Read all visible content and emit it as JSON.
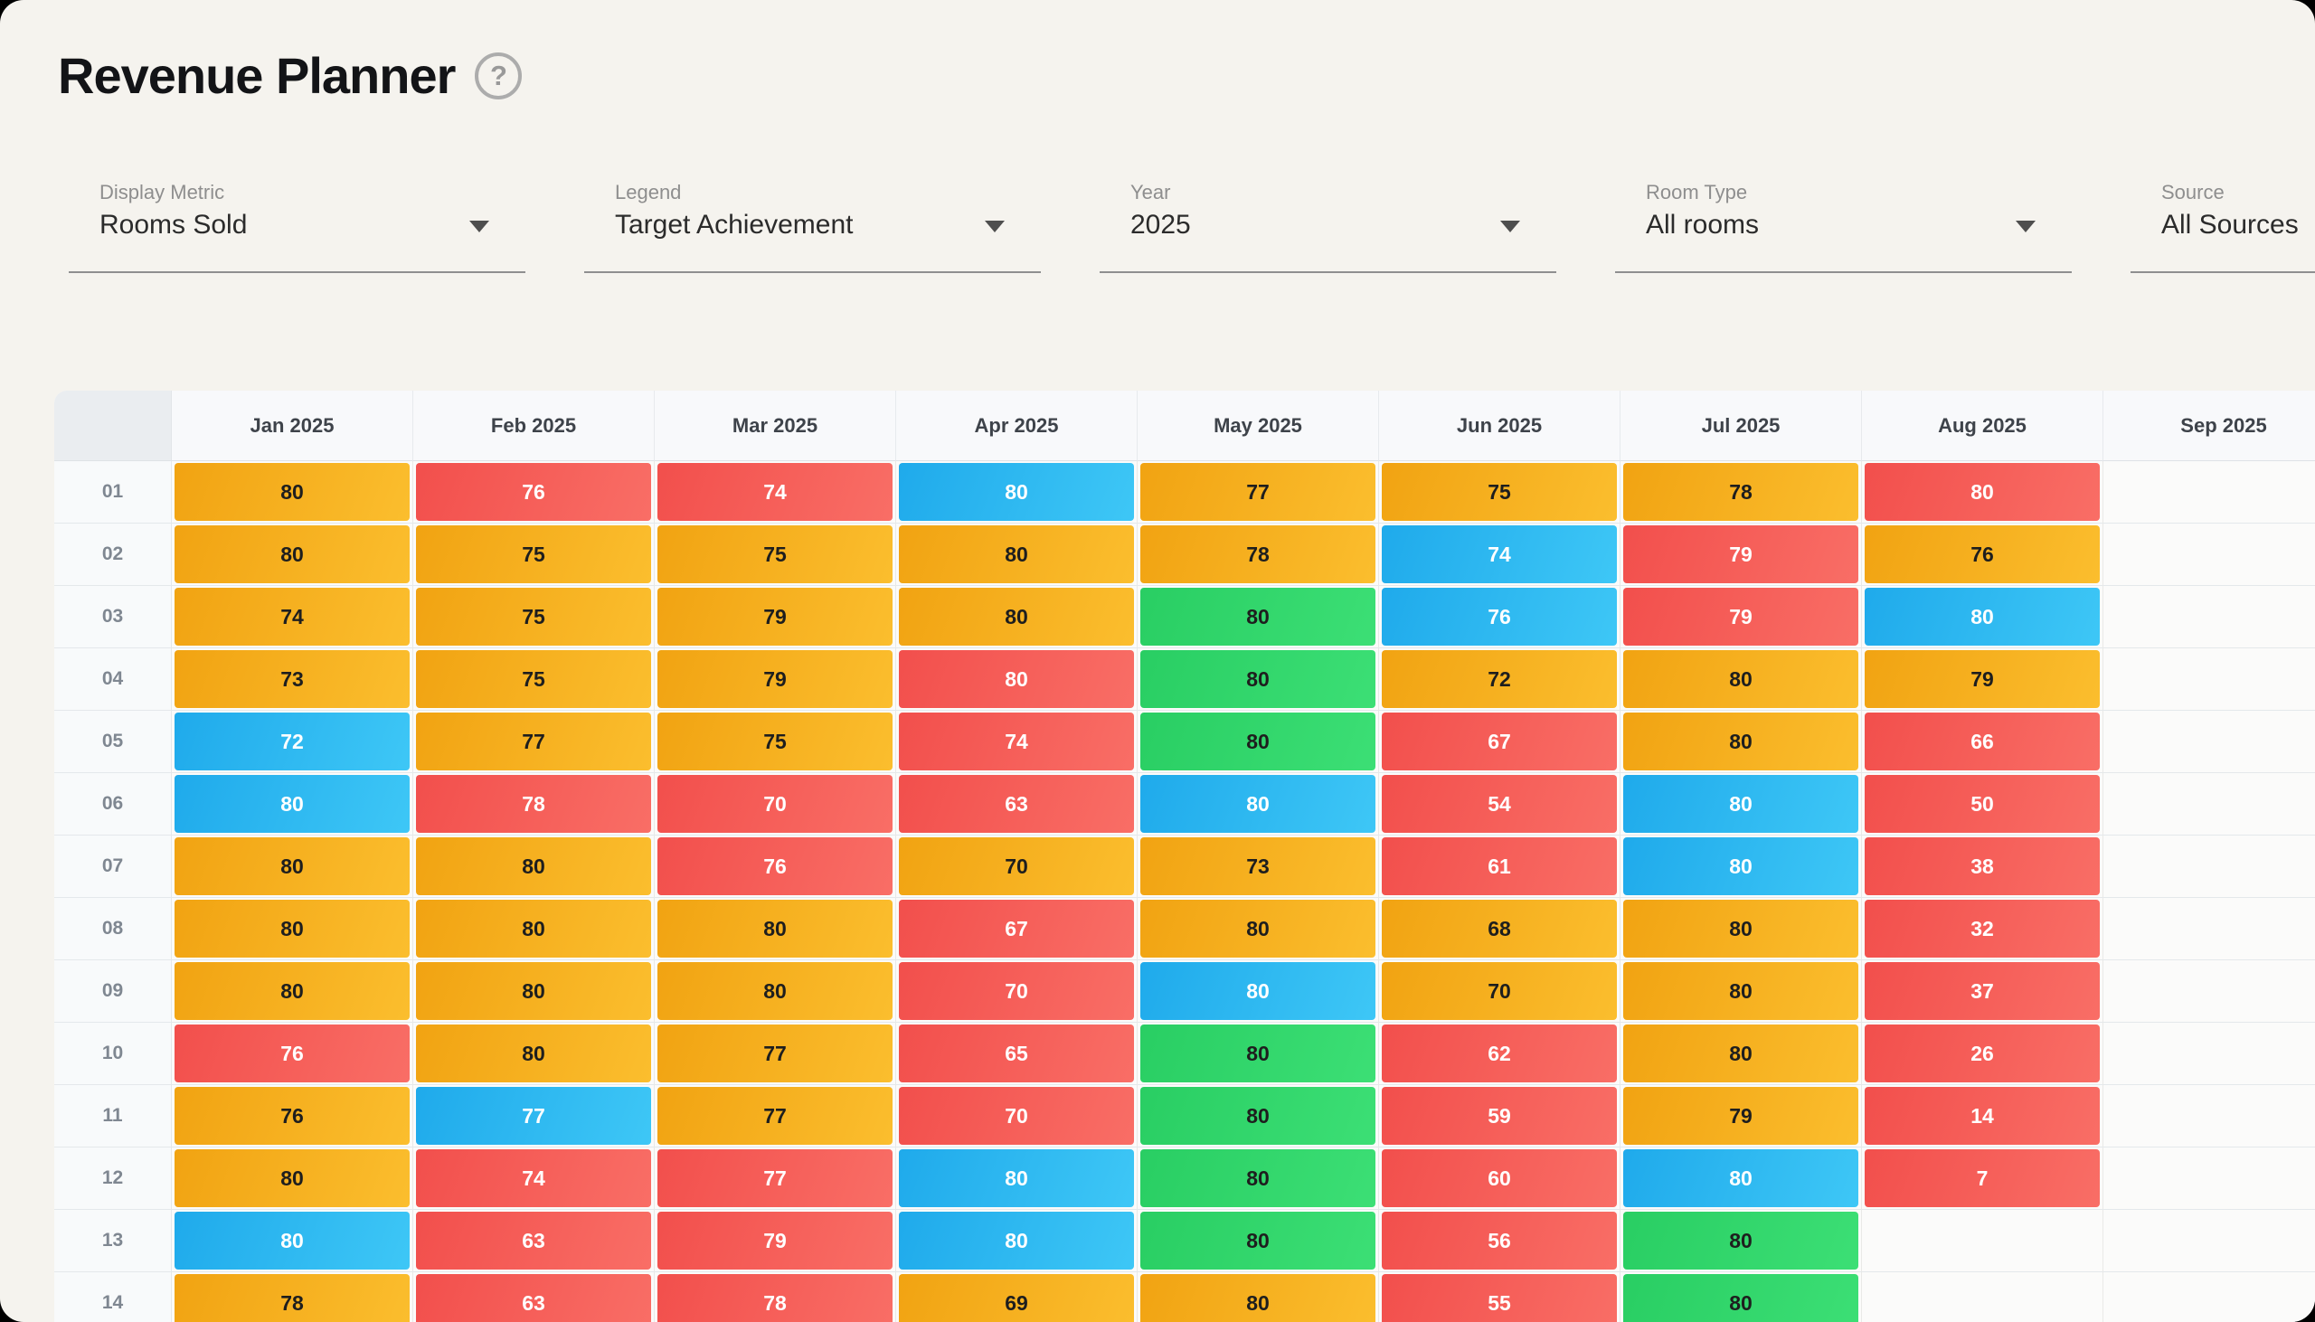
{
  "app": {
    "title": "Revenue Planner",
    "help_glyph": "?"
  },
  "filters": [
    {
      "label": "Display Metric",
      "value": "Rooms Sold"
    },
    {
      "label": "Legend",
      "value": "Target Achievement"
    },
    {
      "label": "Year",
      "value": "2025"
    },
    {
      "label": "Room Type",
      "value": "All rooms"
    },
    {
      "label": "Source",
      "value": "All Sources"
    }
  ],
  "cell_colors": {
    "amber": "#F5AB1E",
    "red": "#F4554F",
    "blue": "#29B8F0",
    "green": "#2ED968"
  },
  "chart_data": {
    "type": "heatmap",
    "title": "Revenue Planner",
    "metric": "Rooms Sold",
    "legend_mode": "Target Achievement",
    "columns": [
      "Jan 2025",
      "Feb 2025",
      "Mar 2025",
      "Apr 2025",
      "May 2025",
      "Jun 2025",
      "Jul 2025",
      "Aug 2025",
      "Sep 2025"
    ],
    "row_labels": [
      "01",
      "02",
      "03",
      "04",
      "05",
      "06",
      "07",
      "08",
      "09",
      "10",
      "11",
      "12",
      "13",
      "14"
    ],
    "cells": [
      [
        {
          "v": 80,
          "c": "amber"
        },
        {
          "v": 76,
          "c": "red"
        },
        {
          "v": 74,
          "c": "red"
        },
        {
          "v": 80,
          "c": "blue"
        },
        {
          "v": 77,
          "c": "amber"
        },
        {
          "v": 75,
          "c": "amber"
        },
        {
          "v": 78,
          "c": "amber"
        },
        {
          "v": 80,
          "c": "red"
        },
        null
      ],
      [
        {
          "v": 80,
          "c": "amber"
        },
        {
          "v": 75,
          "c": "amber"
        },
        {
          "v": 75,
          "c": "amber"
        },
        {
          "v": 80,
          "c": "amber"
        },
        {
          "v": 78,
          "c": "amber"
        },
        {
          "v": 74,
          "c": "blue"
        },
        {
          "v": 79,
          "c": "red"
        },
        {
          "v": 76,
          "c": "amber"
        },
        null
      ],
      [
        {
          "v": 74,
          "c": "amber"
        },
        {
          "v": 75,
          "c": "amber"
        },
        {
          "v": 79,
          "c": "amber"
        },
        {
          "v": 80,
          "c": "amber"
        },
        {
          "v": 80,
          "c": "green"
        },
        {
          "v": 76,
          "c": "blue"
        },
        {
          "v": 79,
          "c": "red"
        },
        {
          "v": 80,
          "c": "blue"
        },
        null
      ],
      [
        {
          "v": 73,
          "c": "amber"
        },
        {
          "v": 75,
          "c": "amber"
        },
        {
          "v": 79,
          "c": "amber"
        },
        {
          "v": 80,
          "c": "red"
        },
        {
          "v": 80,
          "c": "green"
        },
        {
          "v": 72,
          "c": "amber"
        },
        {
          "v": 80,
          "c": "amber"
        },
        {
          "v": 79,
          "c": "amber"
        },
        null
      ],
      [
        {
          "v": 72,
          "c": "blue"
        },
        {
          "v": 77,
          "c": "amber"
        },
        {
          "v": 75,
          "c": "amber"
        },
        {
          "v": 74,
          "c": "red"
        },
        {
          "v": 80,
          "c": "green"
        },
        {
          "v": 67,
          "c": "red"
        },
        {
          "v": 80,
          "c": "amber"
        },
        {
          "v": 66,
          "c": "red"
        },
        null
      ],
      [
        {
          "v": 80,
          "c": "blue"
        },
        {
          "v": 78,
          "c": "red"
        },
        {
          "v": 70,
          "c": "red"
        },
        {
          "v": 63,
          "c": "red"
        },
        {
          "v": 80,
          "c": "blue"
        },
        {
          "v": 54,
          "c": "red"
        },
        {
          "v": 80,
          "c": "blue"
        },
        {
          "v": 50,
          "c": "red"
        },
        null
      ],
      [
        {
          "v": 80,
          "c": "amber"
        },
        {
          "v": 80,
          "c": "amber"
        },
        {
          "v": 76,
          "c": "red"
        },
        {
          "v": 70,
          "c": "amber"
        },
        {
          "v": 73,
          "c": "amber"
        },
        {
          "v": 61,
          "c": "red"
        },
        {
          "v": 80,
          "c": "blue"
        },
        {
          "v": 38,
          "c": "red"
        },
        null
      ],
      [
        {
          "v": 80,
          "c": "amber"
        },
        {
          "v": 80,
          "c": "amber"
        },
        {
          "v": 80,
          "c": "amber"
        },
        {
          "v": 67,
          "c": "red"
        },
        {
          "v": 80,
          "c": "amber"
        },
        {
          "v": 68,
          "c": "amber"
        },
        {
          "v": 80,
          "c": "amber"
        },
        {
          "v": 32,
          "c": "red"
        },
        null
      ],
      [
        {
          "v": 80,
          "c": "amber"
        },
        {
          "v": 80,
          "c": "amber"
        },
        {
          "v": 80,
          "c": "amber"
        },
        {
          "v": 70,
          "c": "red"
        },
        {
          "v": 80,
          "c": "blue"
        },
        {
          "v": 70,
          "c": "amber"
        },
        {
          "v": 80,
          "c": "amber"
        },
        {
          "v": 37,
          "c": "red"
        },
        null
      ],
      [
        {
          "v": 76,
          "c": "red"
        },
        {
          "v": 80,
          "c": "amber"
        },
        {
          "v": 77,
          "c": "amber"
        },
        {
          "v": 65,
          "c": "red"
        },
        {
          "v": 80,
          "c": "green"
        },
        {
          "v": 62,
          "c": "red"
        },
        {
          "v": 80,
          "c": "amber"
        },
        {
          "v": 26,
          "c": "red"
        },
        null
      ],
      [
        {
          "v": 76,
          "c": "amber"
        },
        {
          "v": 77,
          "c": "blue"
        },
        {
          "v": 77,
          "c": "amber"
        },
        {
          "v": 70,
          "c": "red"
        },
        {
          "v": 80,
          "c": "green"
        },
        {
          "v": 59,
          "c": "red"
        },
        {
          "v": 79,
          "c": "amber"
        },
        {
          "v": 14,
          "c": "red"
        },
        null
      ],
      [
        {
          "v": 80,
          "c": "amber"
        },
        {
          "v": 74,
          "c": "red"
        },
        {
          "v": 77,
          "c": "red"
        },
        {
          "v": 80,
          "c": "blue"
        },
        {
          "v": 80,
          "c": "green"
        },
        {
          "v": 60,
          "c": "red"
        },
        {
          "v": 80,
          "c": "blue"
        },
        {
          "v": 7,
          "c": "red"
        },
        null
      ],
      [
        {
          "v": 80,
          "c": "blue"
        },
        {
          "v": 63,
          "c": "red"
        },
        {
          "v": 79,
          "c": "red"
        },
        {
          "v": 80,
          "c": "blue"
        },
        {
          "v": 80,
          "c": "green"
        },
        {
          "v": 56,
          "c": "red"
        },
        {
          "v": 80,
          "c": "green"
        },
        null,
        null
      ],
      [
        {
          "v": 78,
          "c": "amber"
        },
        {
          "v": 63,
          "c": "red"
        },
        {
          "v": 78,
          "c": "red"
        },
        {
          "v": 69,
          "c": "amber"
        },
        {
          "v": 80,
          "c": "amber"
        },
        {
          "v": 55,
          "c": "red"
        },
        {
          "v": 80,
          "c": "green"
        },
        null,
        null
      ]
    ]
  }
}
